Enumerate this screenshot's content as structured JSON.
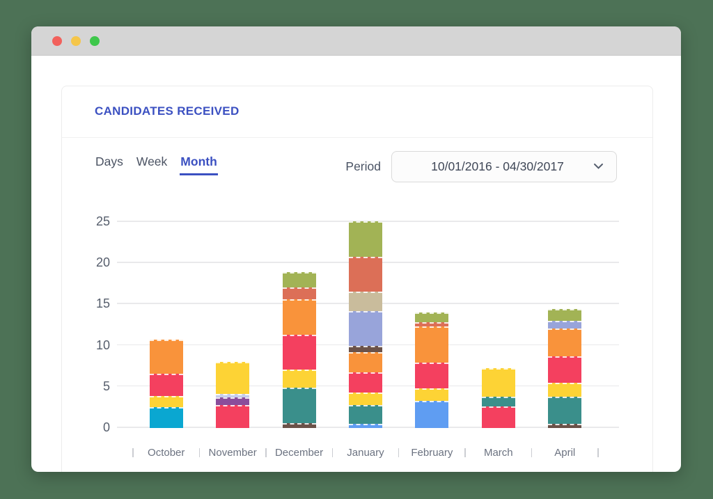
{
  "window": {
    "controls": [
      {
        "name": "close",
        "color": "#f2615c"
      },
      {
        "name": "minimize",
        "color": "#f5c64a"
      },
      {
        "name": "maximize",
        "color": "#3ec74b"
      }
    ]
  },
  "header": {
    "title": "CANDIDATES RECEIVED"
  },
  "view_tabs": [
    {
      "label": "Days",
      "active": false
    },
    {
      "label": "Week",
      "active": false
    },
    {
      "label": "Month",
      "active": true
    }
  ],
  "period": {
    "label": "Period",
    "value": "10/01/2016 - 04/30/2017"
  },
  "chart_data": {
    "type": "bar",
    "variant": "stacked",
    "title": "CANDIDATES RECEIVED",
    "xlabel": "",
    "ylabel": "",
    "ylim": [
      0,
      25
    ],
    "yticks": [
      0,
      5,
      10,
      15,
      20,
      25
    ],
    "grid": "horizontal",
    "legend": "none",
    "categories": [
      "October",
      "November",
      "December",
      "January",
      "February",
      "March",
      "April"
    ],
    "totals": [
      10.7,
      8.0,
      18.9,
      25.1,
      14.0,
      7.3,
      14.4
    ],
    "colors": {
      "cyan": "#0aa7d1",
      "cornflower": "#5f9df2",
      "teal": "#3a8f8b",
      "brown": "#6b5249",
      "pink": "#f4405f",
      "yellow": "#fdd335",
      "orange": "#f9933b",
      "salmon": "#dc6f57",
      "olive": "#a2b355",
      "tan": "#c9bc9c",
      "periwinkle": "#98a4da",
      "lavender": "#c5cdeb",
      "purple": "#8a4d9b"
    },
    "stacks": [
      {
        "label": "October",
        "segments": [
          {
            "color": "cyan",
            "value": 2.5
          },
          {
            "color": "yellow",
            "value": 1.4
          },
          {
            "color": "pink",
            "value": 2.7
          },
          {
            "color": "orange",
            "value": 4.1
          }
        ]
      },
      {
        "label": "November",
        "segments": [
          {
            "color": "pink",
            "value": 2.8
          },
          {
            "color": "purple",
            "value": 0.9
          },
          {
            "color": "lavender",
            "value": 0.4
          },
          {
            "color": "yellow",
            "value": 3.9
          }
        ]
      },
      {
        "label": "December",
        "segments": [
          {
            "color": "brown",
            "value": 0.6
          },
          {
            "color": "teal",
            "value": 4.3
          },
          {
            "color": "yellow",
            "value": 2.2
          },
          {
            "color": "pink",
            "value": 4.2
          },
          {
            "color": "orange",
            "value": 4.3
          },
          {
            "color": "salmon",
            "value": 1.5
          },
          {
            "color": "olive",
            "value": 1.8
          }
        ]
      },
      {
        "label": "January",
        "segments": [
          {
            "color": "cornflower",
            "value": 0.5
          },
          {
            "color": "teal",
            "value": 2.3
          },
          {
            "color": "yellow",
            "value": 1.5
          },
          {
            "color": "pink",
            "value": 2.5
          },
          {
            "color": "orange",
            "value": 2.4
          },
          {
            "color": "brown",
            "value": 0.8
          },
          {
            "color": "periwinkle",
            "value": 4.2
          },
          {
            "color": "tan",
            "value": 2.4
          },
          {
            "color": "salmon",
            "value": 4.2
          },
          {
            "color": "olive",
            "value": 4.3
          }
        ]
      },
      {
        "label": "February",
        "segments": [
          {
            "color": "cornflower",
            "value": 3.3
          },
          {
            "color": "yellow",
            "value": 1.5
          },
          {
            "color": "pink",
            "value": 3.1
          },
          {
            "color": "orange",
            "value": 4.4
          },
          {
            "color": "salmon",
            "value": 0.5
          },
          {
            "color": "olive",
            "value": 1.2
          }
        ]
      },
      {
        "label": "March",
        "segments": [
          {
            "color": "pink",
            "value": 2.6
          },
          {
            "color": "teal",
            "value": 1.2
          },
          {
            "color": "yellow",
            "value": 3.5
          }
        ]
      },
      {
        "label": "April",
        "segments": [
          {
            "color": "brown",
            "value": 0.5
          },
          {
            "color": "teal",
            "value": 3.3
          },
          {
            "color": "yellow",
            "value": 1.7
          },
          {
            "color": "pink",
            "value": 3.2
          },
          {
            "color": "orange",
            "value": 3.4
          },
          {
            "color": "periwinkle",
            "value": 0.9
          },
          {
            "color": "olive",
            "value": 1.4
          }
        ]
      }
    ]
  }
}
